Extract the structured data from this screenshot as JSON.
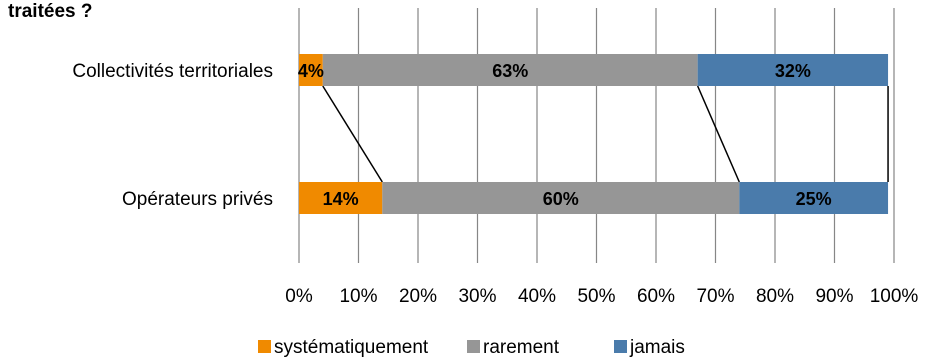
{
  "chart_data": {
    "type": "bar",
    "stacked": true,
    "orientation": "horizontal",
    "title": "traitées ?",
    "categories": [
      "Collectivités territoriales",
      "Opérateurs privés"
    ],
    "series": [
      {
        "name": "systématiquement",
        "color": "#f08a00",
        "values": [
          4,
          14
        ],
        "labels": [
          "4%",
          "14%"
        ]
      },
      {
        "name": "rarement",
        "color": "#969696",
        "values": [
          63,
          60
        ],
        "labels": [
          "63%",
          "60%"
        ]
      },
      {
        "name": "jamais",
        "color": "#4a7bab",
        "values": [
          32,
          25
        ],
        "labels": [
          "32%",
          "25%"
        ]
      }
    ],
    "xlim": [
      0,
      100
    ],
    "xticks": [
      "0%",
      "10%",
      "20%",
      "30%",
      "40%",
      "50%",
      "60%",
      "70%",
      "80%",
      "90%",
      "100%"
    ],
    "grid": true,
    "legend": "bottom",
    "series_lines": true
  }
}
